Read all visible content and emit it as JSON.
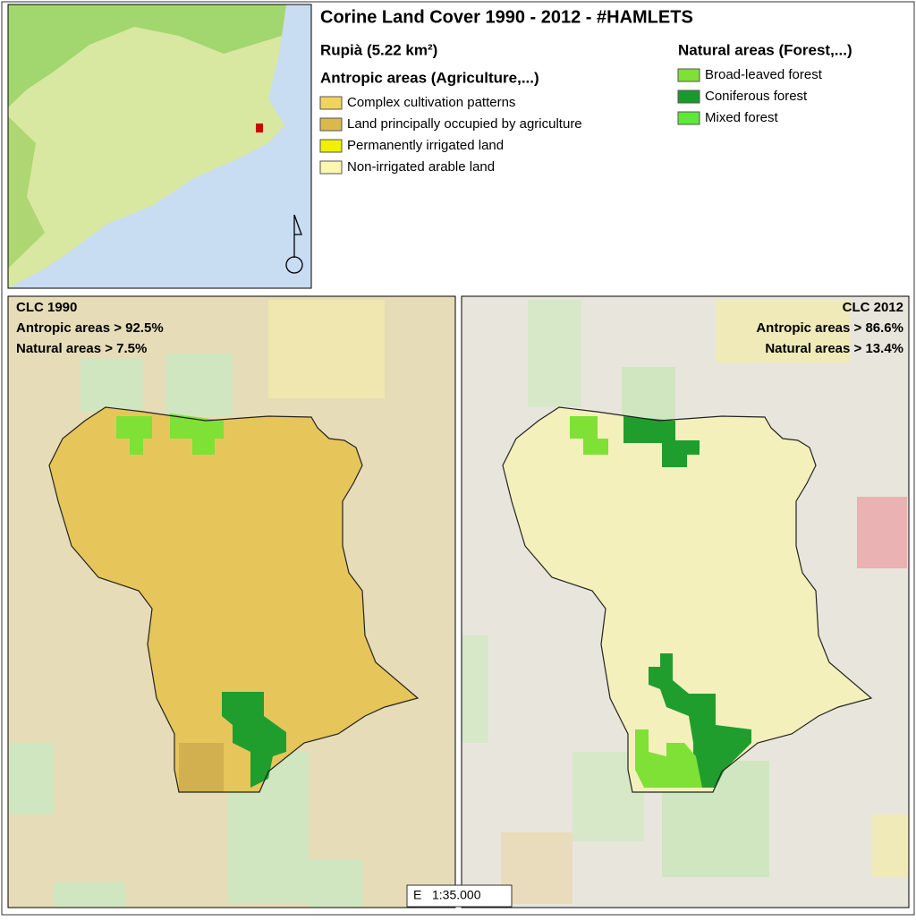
{
  "header": {
    "title": "Corine Land Cover 1990 - 2012 - #HAMLETS",
    "place": "Rupià (5.22 km²)"
  },
  "legend": {
    "antropic": {
      "title": "Antropic areas (Agriculture,...)",
      "items": [
        {
          "label": "Complex cultivation patterns",
          "color": "#f2d45a"
        },
        {
          "label": "Land principally occupied by agriculture",
          "color": "#d9b94a"
        },
        {
          "label": "Permanently irrigated land",
          "color": "#f0f000"
        },
        {
          "label": "Non-irrigated arable land",
          "color": "#fbf6b0"
        }
      ]
    },
    "natural": {
      "title": "Natural areas (Forest,...)",
      "items": [
        {
          "label": "Broad-leaved forest",
          "color": "#7fe036"
        },
        {
          "label": "Coniferous forest",
          "color": "#1a9a2a"
        },
        {
          "label": "Mixed forest",
          "color": "#5ee83a"
        }
      ]
    }
  },
  "panels": [
    {
      "label": "CLC 1990",
      "lines": [
        "Antropic areas > 92.5%",
        "Natural areas > 7.5%"
      ]
    },
    {
      "label": "CLC 2012",
      "lines": [
        "Antropic areas > 86.6%",
        "Natural areas > 13.4%"
      ]
    }
  ],
  "scale": "E   1:35.000"
}
